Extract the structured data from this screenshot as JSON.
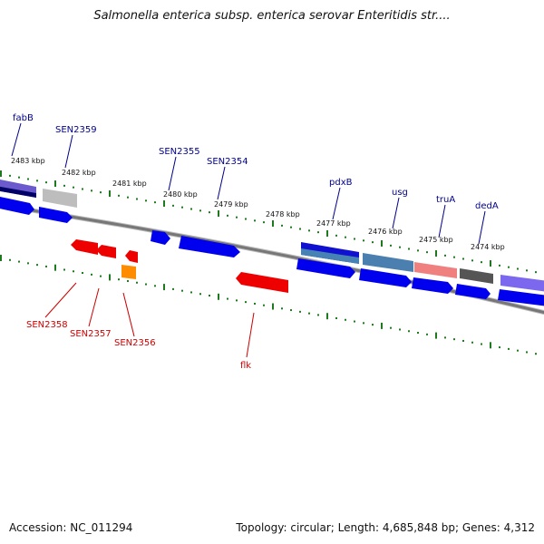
{
  "title": "Salmonella enterica subsp. enterica serovar Enteritidis str....",
  "footer": {
    "accession": "Accession: NC_011294",
    "summary": "Topology: circular; Length: 4,685,848 bp; Genes: 4,312"
  },
  "colors": {
    "backbone": "#7f7f7f",
    "tick": "#1f7a1f",
    "forward_label": "#00008b",
    "reverse_label": "#cc0000",
    "blue_feature": "#0000ee",
    "red_feature": "#ee0000",
    "orange_feature": "#ff8c00"
  },
  "kbp_ticks": [
    "2483 kbp",
    "2482 kbp",
    "2481 kbp",
    "2480 kbp",
    "2479 kbp",
    "2478 kbp",
    "2477 kbp",
    "2476 kbp",
    "2475 kbp",
    "2474 kbp"
  ],
  "forward_genes": [
    "fabB",
    "SEN2359",
    "SEN2355",
    "SEN2354",
    "pdxB",
    "usg",
    "truA",
    "dedA"
  ],
  "reverse_genes": [
    "SEN2358",
    "SEN2357",
    "SEN2356",
    "flk"
  ]
}
